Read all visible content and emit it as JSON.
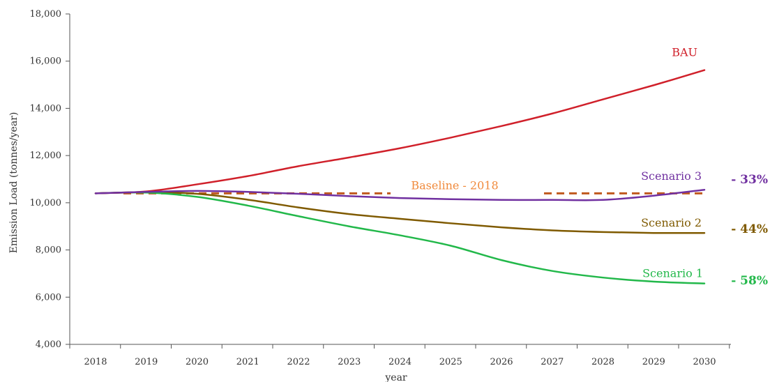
{
  "chart_data": {
    "type": "line",
    "xlabel": "year",
    "ylabel": "Emission Load (tonnes/year)",
    "ylim": [
      4000,
      18000
    ],
    "y_ticks": [
      "4,000",
      "6,000",
      "8,000",
      "10,000",
      "12,000",
      "14,000",
      "16,000",
      "18,000"
    ],
    "y_tick_values": [
      4000,
      6000,
      8000,
      10000,
      12000,
      14000,
      16000,
      18000
    ],
    "categories": [
      "2018",
      "2019",
      "2020",
      "2021",
      "2022",
      "2023",
      "2024",
      "2025",
      "2026",
      "2027",
      "2028",
      "2029",
      "2030"
    ],
    "grid": false,
    "series": [
      {
        "key": "bau",
        "name": "BAU",
        "color": "#d0202a",
        "dashed": false,
        "values": [
          10400,
          10480,
          10780,
          11130,
          11550,
          11920,
          12310,
          12760,
          13250,
          13780,
          14380,
          14980,
          15620
        ],
        "pct": ""
      },
      {
        "key": "s3",
        "name": "Scenario 3",
        "color": "#7030a0",
        "dashed": false,
        "values": [
          10400,
          10460,
          10500,
          10460,
          10380,
          10280,
          10200,
          10150,
          10120,
          10120,
          10120,
          10300,
          10550
        ],
        "pct": "- 33%"
      },
      {
        "key": "s2",
        "name": "Scenario 2",
        "color": "#7f5a00",
        "dashed": false,
        "values": [
          10400,
          10450,
          10380,
          10130,
          9800,
          9520,
          9320,
          9130,
          8960,
          8830,
          8760,
          8720,
          8720
        ],
        "pct": "- 44%"
      },
      {
        "key": "s1",
        "name": "Scenario 1",
        "color": "#22b84a",
        "dashed": false,
        "values": [
          10400,
          10430,
          10250,
          9880,
          9430,
          9000,
          8620,
          8180,
          7570,
          7110,
          6830,
          6660,
          6580
        ],
        "pct": "- 58%"
      },
      {
        "key": "baseline",
        "name": "Baseline - 2018",
        "color": "#c0591e",
        "dashed": true,
        "values": [
          10400,
          10400,
          10400,
          10400,
          10400,
          10400,
          10400,
          10400,
          10400,
          10400,
          10400,
          10400,
          10400
        ],
        "label_color": "#f08a3c",
        "pct": ""
      }
    ]
  }
}
